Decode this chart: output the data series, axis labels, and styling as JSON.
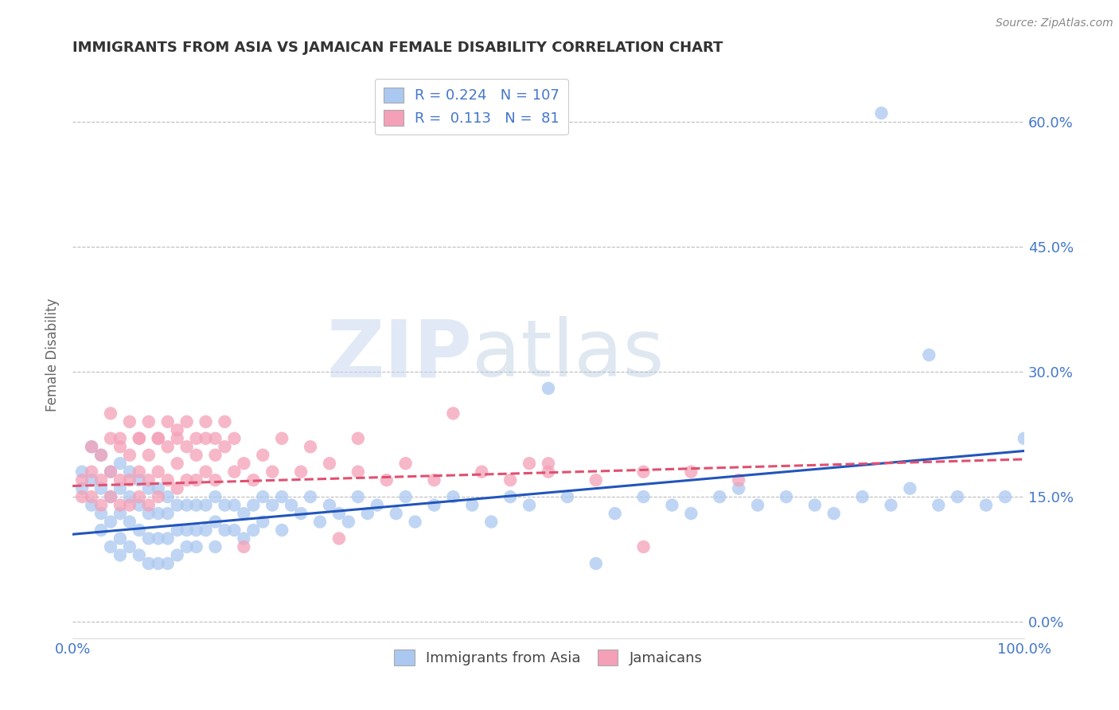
{
  "title": "IMMIGRANTS FROM ASIA VS JAMAICAN FEMALE DISABILITY CORRELATION CHART",
  "source": "Source: ZipAtlas.com",
  "ylabel": "Female Disability",
  "legend_labels": [
    "Immigrants from Asia",
    "Jamaicans"
  ],
  "legend_r": [
    0.224,
    0.113
  ],
  "legend_n": [
    107,
    81
  ],
  "xlim": [
    0.0,
    1.0
  ],
  "ylim": [
    -0.02,
    0.66
  ],
  "yticks": [
    0.0,
    0.15,
    0.3,
    0.45,
    0.6
  ],
  "ytick_labels": [
    "0.0%",
    "15.0%",
    "30.0%",
    "45.0%",
    "60.0%"
  ],
  "xticks": [
    0.0,
    1.0
  ],
  "xtick_labels": [
    "0.0%",
    "100.0%"
  ],
  "color_blue": "#aac8f0",
  "color_pink": "#f4a0b8",
  "line_blue": "#2255bb",
  "line_pink": "#e05070",
  "title_color": "#333333",
  "axis_color": "#4477cc",
  "grid_color": "#bbbbbb",
  "blue_scatter_x": [
    0.01,
    0.01,
    0.02,
    0.02,
    0.02,
    0.03,
    0.03,
    0.03,
    0.03,
    0.04,
    0.04,
    0.04,
    0.04,
    0.05,
    0.05,
    0.05,
    0.05,
    0.05,
    0.06,
    0.06,
    0.06,
    0.06,
    0.07,
    0.07,
    0.07,
    0.07,
    0.08,
    0.08,
    0.08,
    0.08,
    0.09,
    0.09,
    0.09,
    0.09,
    0.1,
    0.1,
    0.1,
    0.1,
    0.11,
    0.11,
    0.11,
    0.12,
    0.12,
    0.12,
    0.13,
    0.13,
    0.13,
    0.14,
    0.14,
    0.15,
    0.15,
    0.15,
    0.16,
    0.16,
    0.17,
    0.17,
    0.18,
    0.18,
    0.19,
    0.19,
    0.2,
    0.2,
    0.21,
    0.22,
    0.22,
    0.23,
    0.24,
    0.25,
    0.26,
    0.27,
    0.28,
    0.29,
    0.3,
    0.31,
    0.32,
    0.34,
    0.35,
    0.36,
    0.38,
    0.4,
    0.42,
    0.44,
    0.46,
    0.48,
    0.5,
    0.52,
    0.55,
    0.57,
    0.6,
    0.63,
    0.65,
    0.68,
    0.7,
    0.72,
    0.75,
    0.78,
    0.8,
    0.83,
    0.86,
    0.88,
    0.91,
    0.93,
    0.96,
    0.98,
    1.0,
    0.85,
    0.9
  ],
  "blue_scatter_y": [
    0.18,
    0.16,
    0.21,
    0.17,
    0.14,
    0.2,
    0.16,
    0.13,
    0.11,
    0.18,
    0.15,
    0.12,
    0.09,
    0.19,
    0.16,
    0.13,
    0.1,
    0.08,
    0.18,
    0.15,
    0.12,
    0.09,
    0.17,
    0.14,
    0.11,
    0.08,
    0.16,
    0.13,
    0.1,
    0.07,
    0.16,
    0.13,
    0.1,
    0.07,
    0.15,
    0.13,
    0.1,
    0.07,
    0.14,
    0.11,
    0.08,
    0.14,
    0.11,
    0.09,
    0.14,
    0.11,
    0.09,
    0.14,
    0.11,
    0.15,
    0.12,
    0.09,
    0.14,
    0.11,
    0.14,
    0.11,
    0.13,
    0.1,
    0.14,
    0.11,
    0.15,
    0.12,
    0.14,
    0.15,
    0.11,
    0.14,
    0.13,
    0.15,
    0.12,
    0.14,
    0.13,
    0.12,
    0.15,
    0.13,
    0.14,
    0.13,
    0.15,
    0.12,
    0.14,
    0.15,
    0.14,
    0.12,
    0.15,
    0.14,
    0.28,
    0.15,
    0.07,
    0.13,
    0.15,
    0.14,
    0.13,
    0.15,
    0.16,
    0.14,
    0.15,
    0.14,
    0.13,
    0.15,
    0.14,
    0.16,
    0.14,
    0.15,
    0.14,
    0.15,
    0.22,
    0.61,
    0.32
  ],
  "pink_scatter_x": [
    0.01,
    0.01,
    0.02,
    0.02,
    0.02,
    0.03,
    0.03,
    0.03,
    0.04,
    0.04,
    0.04,
    0.05,
    0.05,
    0.05,
    0.06,
    0.06,
    0.06,
    0.07,
    0.07,
    0.07,
    0.08,
    0.08,
    0.08,
    0.09,
    0.09,
    0.09,
    0.1,
    0.1,
    0.11,
    0.11,
    0.11,
    0.12,
    0.12,
    0.13,
    0.13,
    0.14,
    0.14,
    0.15,
    0.15,
    0.16,
    0.17,
    0.18,
    0.19,
    0.2,
    0.21,
    0.22,
    0.24,
    0.25,
    0.27,
    0.28,
    0.3,
    0.33,
    0.35,
    0.38,
    0.4,
    0.43,
    0.46,
    0.48,
    0.5,
    0.55,
    0.6,
    0.65,
    0.7,
    0.04,
    0.05,
    0.06,
    0.07,
    0.08,
    0.09,
    0.1,
    0.11,
    0.12,
    0.13,
    0.14,
    0.15,
    0.16,
    0.17,
    0.18,
    0.3,
    0.5,
    0.6
  ],
  "pink_scatter_y": [
    0.17,
    0.15,
    0.21,
    0.18,
    0.15,
    0.2,
    0.17,
    0.14,
    0.22,
    0.18,
    0.15,
    0.21,
    0.17,
    0.14,
    0.2,
    0.17,
    0.14,
    0.22,
    0.18,
    0.15,
    0.2,
    0.17,
    0.14,
    0.22,
    0.18,
    0.15,
    0.21,
    0.17,
    0.23,
    0.19,
    0.16,
    0.21,
    0.17,
    0.2,
    0.17,
    0.22,
    0.18,
    0.2,
    0.17,
    0.21,
    0.18,
    0.19,
    0.17,
    0.2,
    0.18,
    0.22,
    0.18,
    0.21,
    0.19,
    0.1,
    0.18,
    0.17,
    0.19,
    0.17,
    0.25,
    0.18,
    0.17,
    0.19,
    0.18,
    0.17,
    0.09,
    0.18,
    0.17,
    0.25,
    0.22,
    0.24,
    0.22,
    0.24,
    0.22,
    0.24,
    0.22,
    0.24,
    0.22,
    0.24,
    0.22,
    0.24,
    0.22,
    0.09,
    0.22,
    0.19,
    0.18
  ],
  "blue_trend_x": [
    0.0,
    1.0
  ],
  "blue_trend_y": [
    0.105,
    0.205
  ],
  "pink_trend_x": [
    0.0,
    1.0
  ],
  "pink_trend_y": [
    0.163,
    0.195
  ]
}
